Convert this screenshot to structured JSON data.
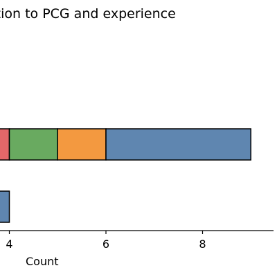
{
  "chart_data": {
    "type": "bar",
    "orientation": "horizontal",
    "stacked": true,
    "title": "ation to PCG and experience",
    "xlabel": "Count",
    "xlim": [
      2.0,
      9.47
    ],
    "xticks": [
      "4",
      "6",
      "8"
    ],
    "grid": false,
    "rows": [
      {
        "segments": [
          {
            "start": 2.0,
            "end": 4.0,
            "color": "#e15759"
          },
          {
            "start": 4.0,
            "end": 5.0,
            "color": "#59a14f"
          },
          {
            "start": 5.0,
            "end": 6.0,
            "color": "#f28e2b"
          },
          {
            "start": 6.0,
            "end": 9.0,
            "color": "#4e79a7"
          }
        ]
      },
      {
        "segments": [
          {
            "start": 2.0,
            "end": 4.0,
            "color": "#4e79a7"
          }
        ]
      }
    ]
  }
}
